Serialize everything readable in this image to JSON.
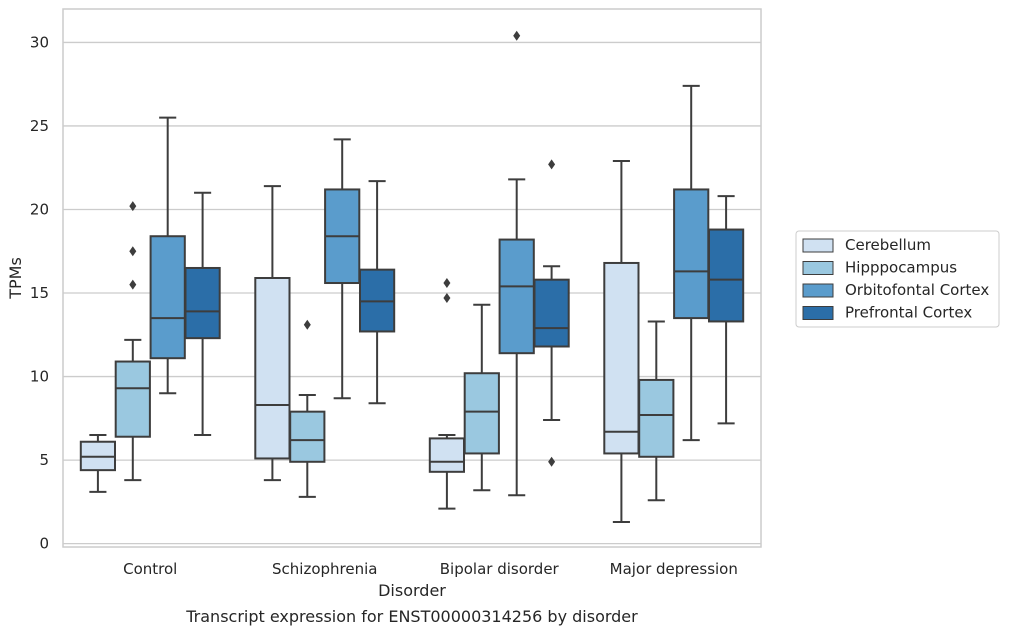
{
  "chart_data": {
    "type": "box",
    "caption": "Transcript expression for ENST00000314256 by disorder",
    "xlabel": "Disorder",
    "ylabel": "TPMs",
    "ylim": [
      -0.2,
      32
    ],
    "yticks": [
      0,
      5,
      10,
      15,
      20,
      25,
      30
    ],
    "grid": true,
    "legend_position": "right",
    "categories": [
      "Control",
      "Schizophrenia",
      "Bipolar disorder",
      "Major depression"
    ],
    "series": [
      {
        "name": "Cerebellum",
        "color": "#d0e1f2",
        "boxes": [
          {
            "whislo": 3.1,
            "q1": 4.4,
            "med": 5.2,
            "q3": 6.1,
            "whishi": 6.5,
            "fliers": []
          },
          {
            "whislo": 3.8,
            "q1": 5.1,
            "med": 8.3,
            "q3": 15.9,
            "whishi": 21.4,
            "fliers": []
          },
          {
            "whislo": 2.1,
            "q1": 4.3,
            "med": 4.9,
            "q3": 6.3,
            "whishi": 6.5,
            "fliers": [
              14.7,
              15.6
            ]
          },
          {
            "whislo": 1.3,
            "q1": 5.4,
            "med": 6.7,
            "q3": 16.8,
            "whishi": 22.9,
            "fliers": []
          }
        ]
      },
      {
        "name": "Hipppocampus",
        "color": "#9ac8e0",
        "boxes": [
          {
            "whislo": 3.8,
            "q1": 6.4,
            "med": 9.3,
            "q3": 10.9,
            "whishi": 12.2,
            "fliers": [
              15.5,
              17.5,
              20.2
            ]
          },
          {
            "whislo": 2.8,
            "q1": 4.9,
            "med": 6.2,
            "q3": 7.9,
            "whishi": 8.9,
            "fliers": [
              13.1
            ]
          },
          {
            "whislo": 3.2,
            "q1": 5.4,
            "med": 7.9,
            "q3": 10.2,
            "whishi": 14.3,
            "fliers": []
          },
          {
            "whislo": 2.6,
            "q1": 5.2,
            "med": 7.7,
            "q3": 9.8,
            "whishi": 13.3,
            "fliers": []
          }
        ]
      },
      {
        "name": "Orbitofontal Cortex",
        "color": "#5a9ccc",
        "boxes": [
          {
            "whislo": 9.0,
            "q1": 11.1,
            "med": 13.5,
            "q3": 18.4,
            "whishi": 25.5,
            "fliers": []
          },
          {
            "whislo": 8.7,
            "q1": 15.6,
            "med": 18.4,
            "q3": 21.2,
            "whishi": 24.2,
            "fliers": []
          },
          {
            "whislo": 2.9,
            "q1": 11.4,
            "med": 15.4,
            "q3": 18.2,
            "whishi": 21.8,
            "fliers": [
              30.4
            ]
          },
          {
            "whislo": 6.2,
            "q1": 13.5,
            "med": 16.3,
            "q3": 21.2,
            "whishi": 27.4,
            "fliers": []
          }
        ]
      },
      {
        "name": "Prefrontal Cortex",
        "color": "#2b6ea8",
        "boxes": [
          {
            "whislo": 6.5,
            "q1": 12.3,
            "med": 13.9,
            "q3": 16.5,
            "whishi": 21.0,
            "fliers": []
          },
          {
            "whislo": 8.4,
            "q1": 12.7,
            "med": 14.5,
            "q3": 16.4,
            "whishi": 21.7,
            "fliers": []
          },
          {
            "whislo": 7.4,
            "q1": 11.8,
            "med": 12.9,
            "q3": 15.8,
            "whishi": 16.6,
            "fliers": [
              4.9,
              22.7
            ]
          },
          {
            "whislo": 7.2,
            "q1": 13.3,
            "med": 15.8,
            "q3": 18.8,
            "whishi": 20.8,
            "fliers": []
          }
        ]
      }
    ]
  }
}
